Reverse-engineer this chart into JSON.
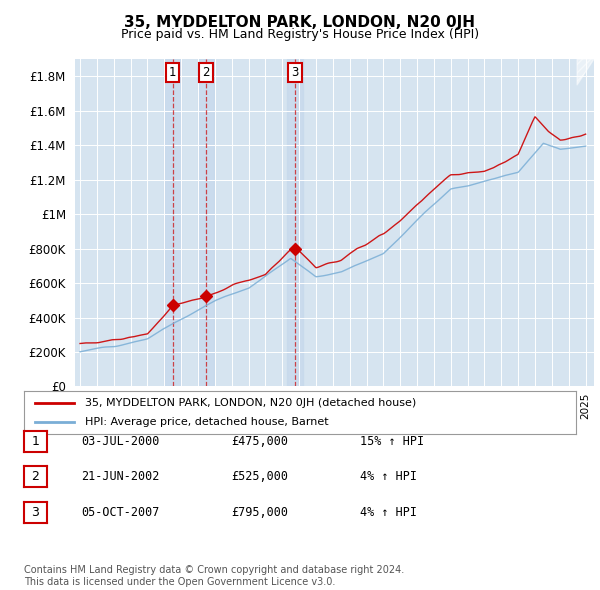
{
  "title": "35, MYDDELTON PARK, LONDON, N20 0JH",
  "subtitle": "Price paid vs. HM Land Registry's House Price Index (HPI)",
  "plot_bg_color": "#d6e4f0",
  "highlight_color": "#c5d8ec",
  "ylim": [
    0,
    1900000
  ],
  "yticks": [
    0,
    200000,
    400000,
    600000,
    800000,
    1000000,
    1200000,
    1400000,
    1600000,
    1800000
  ],
  "xlim_start": 1994.7,
  "xlim_end": 2025.5,
  "sale_dates": [
    2000.5,
    2002.47,
    2007.76
  ],
  "sale_prices": [
    475000,
    525000,
    795000
  ],
  "sale_labels": [
    "1",
    "2",
    "3"
  ],
  "legend_red_label": "35, MYDDELTON PARK, LONDON, N20 0JH (detached house)",
  "legend_blue_label": "HPI: Average price, detached house, Barnet",
  "table_entries": [
    {
      "label": "1",
      "date": "03-JUL-2000",
      "price": "£475,000",
      "change": "15% ↑ HPI"
    },
    {
      "label": "2",
      "date": "21-JUN-2002",
      "price": "£525,000",
      "change": "4% ↑ HPI"
    },
    {
      "label": "3",
      "date": "05-OCT-2007",
      "price": "£795,000",
      "change": "4% ↑ HPI"
    }
  ],
  "footer": "Contains HM Land Registry data © Crown copyright and database right 2024.\nThis data is licensed under the Open Government Licence v3.0.",
  "red_color": "#cc0000",
  "blue_color": "#7aaed6",
  "dashed_line_color": "#cc0000"
}
